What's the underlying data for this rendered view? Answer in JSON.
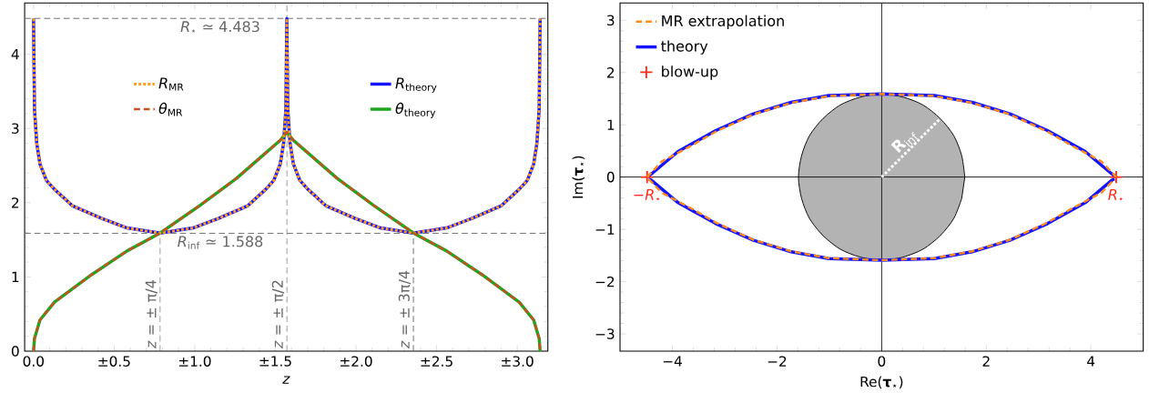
{
  "chart_data": [
    {
      "type": "line",
      "xlabel": "*z*",
      "legend": "top",
      "xlim": [
        -0.055,
        3.19
      ],
      "ylim": [
        0,
        4.69
      ],
      "xticks": [
        {
          "value": 0,
          "label": "0.0"
        },
        {
          "value": 0.5,
          "label": "±0.5"
        },
        {
          "value": 1,
          "label": "±1.0"
        },
        {
          "value": 1.5,
          "label": "±1.5"
        },
        {
          "value": 2,
          "label": "±2.0"
        },
        {
          "value": 2.5,
          "label": "±2.5"
        },
        {
          "value": 3,
          "label": "±3.0"
        }
      ],
      "yticks": [
        0,
        1,
        2,
        3,
        4
      ],
      "series": [
        {
          "name": "*R*$_{MR}$",
          "color": "#ff9c1e",
          "line_style": "dotted",
          "x": [
            0,
            0.006,
            0.02,
            0.04,
            0.08,
            0.13,
            0.24,
            0.42,
            0.58,
            0.785,
            0.99,
            1.15,
            1.33,
            1.44,
            1.49,
            1.53,
            1.551,
            1.565,
            1.571,
            1.577,
            1.591,
            1.612,
            1.652,
            1.702,
            1.812,
            1.992,
            2.152,
            2.356,
            2.562,
            2.722,
            2.902,
            3.012,
            3.062,
            3.102,
            3.122,
            3.136,
            3.142
          ],
          "values": [
            4.48,
            3.26,
            2.8,
            2.52,
            2.3,
            2.18,
            1.96,
            1.79,
            1.66,
            1.59,
            1.66,
            1.79,
            1.96,
            2.18,
            2.3,
            2.52,
            2.8,
            3.26,
            4.48,
            3.26,
            2.8,
            2.52,
            2.3,
            2.18,
            1.96,
            1.79,
            1.66,
            1.59,
            1.66,
            1.79,
            1.96,
            2.18,
            2.3,
            2.52,
            2.8,
            3.26,
            4.48
          ]
        },
        {
          "name": "*R*$_{theory}$",
          "color": "#1414ff",
          "line_style": "solid",
          "x": [
            0,
            0.006,
            0.02,
            0.04,
            0.08,
            0.13,
            0.24,
            0.42,
            0.58,
            0.785,
            0.99,
            1.15,
            1.33,
            1.44,
            1.49,
            1.53,
            1.551,
            1.565,
            1.571,
            1.577,
            1.591,
            1.612,
            1.652,
            1.702,
            1.812,
            1.992,
            2.152,
            2.356,
            2.562,
            2.722,
            2.902,
            3.012,
            3.062,
            3.102,
            3.122,
            3.136,
            3.142
          ],
          "values": [
            4.48,
            3.26,
            2.8,
            2.52,
            2.3,
            2.18,
            1.96,
            1.79,
            1.66,
            1.59,
            1.66,
            1.79,
            1.96,
            2.18,
            2.3,
            2.52,
            2.8,
            3.26,
            4.48,
            3.26,
            2.8,
            2.52,
            2.3,
            2.18,
            1.96,
            1.79,
            1.66,
            1.59,
            1.66,
            1.79,
            1.96,
            2.18,
            2.3,
            2.52,
            2.8,
            3.26,
            4.48
          ]
        },
        {
          "name": "*θ*$_{MR}$",
          "color": "#c8501e",
          "line_style": "dashed",
          "x": [
            0,
            0.006,
            0.04,
            0.13,
            0.36,
            0.58,
            0.785,
            1.03,
            1.26,
            1.44,
            1.53,
            1.571,
            1.612,
            1.702,
            1.882,
            2.112,
            2.357,
            2.562,
            2.782,
            3.012,
            3.102,
            3.136,
            3.142
          ],
          "values": [
            0,
            0.17,
            0.42,
            0.66,
            1.03,
            1.35,
            1.59,
            1.96,
            2.33,
            2.67,
            2.84,
            2.95,
            2.84,
            2.67,
            2.33,
            1.96,
            1.59,
            1.35,
            1.03,
            0.66,
            0.42,
            0.17,
            0
          ]
        },
        {
          "name": "*θ*$_{theory}$",
          "color": "#1fa51f",
          "line_style": "solid",
          "x": [
            0,
            0.006,
            0.04,
            0.13,
            0.36,
            0.58,
            0.785,
            1.03,
            1.26,
            1.44,
            1.53,
            1.571,
            1.612,
            1.702,
            1.882,
            2.112,
            2.357,
            2.562,
            2.782,
            3.012,
            3.102,
            3.136,
            3.142
          ],
          "values": [
            0,
            0.17,
            0.42,
            0.66,
            1.03,
            1.35,
            1.59,
            1.96,
            2.33,
            2.67,
            2.84,
            2.95,
            2.84,
            2.67,
            2.33,
            1.96,
            1.59,
            1.35,
            1.03,
            0.66,
            0.42,
            0.17,
            0
          ]
        }
      ],
      "ref_lines": [
        {
          "axis": "y",
          "value": 4.483,
          "label": "*R*$_{⋆}$ ≃ 4.483",
          "color": "#666666",
          "line_style": "dashed"
        },
        {
          "axis": "y",
          "value": 1.588,
          "label": "*R*$_{inf}$ ≃ 1.588",
          "color": "#666666",
          "line_style": "dashed"
        },
        {
          "axis": "x",
          "value": 1.571,
          "label": "*z* = ± π/2",
          "color": "#666666",
          "line_style": "dashed"
        }
      ],
      "annotations": [
        {
          "text": "*z* = ± π/4",
          "x": 0.785,
          "y": 1.588
        },
        {
          "text": "*z* = ± 3π/4",
          "x": 2.356,
          "y": 1.588
        }
      ]
    },
    {
      "type": "line",
      "xlabel": "Re(**τ**$_{⋆}$)",
      "ylabel": "Im(**τ**$_{⋆}$)",
      "legend": "top left",
      "xlim": [
        -5,
        5
      ],
      "ylim": [
        -3.33,
        3.33
      ],
      "xticks": [
        {
          "value": -4,
          "label": "−4"
        },
        {
          "value": -2,
          "label": "−2"
        },
        0,
        2,
        4
      ],
      "yticks": [
        {
          "value": -3,
          "label": "−3"
        },
        {
          "value": -2,
          "label": "−2"
        },
        {
          "value": -1,
          "label": "−1"
        },
        0,
        1,
        2,
        3
      ],
      "series": [
        {
          "name": "MR extrapolation",
          "color": "#ff8c1a",
          "line_style": "dashed",
          "x": [
            -4.483,
            -4.2,
            -3.6,
            -3.17,
            -2.45,
            -1.73,
            -1.01,
            0,
            1.01,
            1.73,
            2.45,
            3.17,
            3.6,
            4.2,
            4.483
          ],
          "values": [
            0,
            0.3,
            0.62,
            0.87,
            1.2,
            1.42,
            1.55,
            1.59,
            1.55,
            1.42,
            1.2,
            0.87,
            0.62,
            0.3,
            0
          ]
        },
        {
          "color": "#ff8c1a",
          "line_style": "dashed",
          "x": [
            -4.45,
            -4.2,
            -3.6,
            -3.17,
            -2.45,
            -1.73,
            -1.01,
            0,
            1.01,
            1.73,
            2.45,
            3.17,
            3.6,
            4.2,
            4.45
          ],
          "values": [
            -0.04,
            -0.3,
            -0.62,
            -0.87,
            -1.2,
            -1.42,
            -1.55,
            -1.59,
            -1.55,
            -1.42,
            -1.2,
            -0.87,
            -0.62,
            -0.3,
            -0.04
          ]
        },
        {
          "name": "theory",
          "color": "#1414ff",
          "line_style": "solid",
          "x": [
            -4.483,
            -4.4,
            -3.89,
            -3.17,
            -2.45,
            -1.73,
            -1.01,
            0,
            1.01,
            1.73,
            2.45,
            3.17,
            3.89,
            4.4,
            4.483
          ],
          "values": [
            0,
            0.06,
            0.49,
            0.89,
            1.21,
            1.43,
            1.56,
            1.59,
            1.56,
            1.43,
            1.21,
            0.89,
            0.49,
            0.06,
            0
          ]
        },
        {
          "color": "#1414ff",
          "line_style": "solid",
          "x": [
            -4.45,
            -4.4,
            -3.89,
            -3.17,
            -2.45,
            -1.73,
            -1.01,
            0,
            1.01,
            1.73,
            2.45,
            3.17,
            3.89,
            4.4,
            4.45
          ],
          "values": [
            -0.03,
            -0.06,
            -0.49,
            -0.89,
            -1.21,
            -1.43,
            -1.56,
            -1.59,
            -1.56,
            -1.43,
            -1.21,
            -0.89,
            -0.49,
            -0.06,
            -0.03
          ]
        },
        {
          "type": "scatter",
          "name": "blow-up",
          "color": "#ff2a1a",
          "marker": "cross",
          "x": [
            -4.483,
            4.483
          ],
          "values": [
            0,
            0
          ],
          "value_labels": [
            "−*R*$_{⋆}$",
            "*R*$_{⋆}$"
          ]
        },
        {
          "type": "area",
          "color": "#b3b3b3",
          "x": [
            1.59,
            1.53,
            1.38,
            1.12,
            0.79,
            0.41,
            0,
            -0.41,
            -0.79,
            -1.12,
            -1.38,
            -1.53,
            -1.59,
            -1.53,
            -1.38,
            -1.12,
            -0.79,
            -0.41,
            0,
            0.41,
            0.79,
            1.12,
            1.38,
            1.53
          ],
          "values": [
            0,
            0.41,
            0.79,
            1.12,
            1.38,
            1.53,
            1.59,
            1.53,
            1.38,
            1.12,
            0.79,
            0.41,
            0,
            -0.41,
            -0.79,
            -1.12,
            -1.38,
            -1.53,
            -1.59,
            -1.53,
            -1.38,
            -1.12,
            -0.79,
            -0.41
          ]
        },
        {
          "color": "#ffffff",
          "line_style": "dotted",
          "x": [
            0,
            1.12
          ],
          "values": [
            0,
            1.12
          ]
        }
      ],
      "ref_lines": [
        {
          "axis": "x",
          "value": 0,
          "color": "#000000",
          "line_style": "solid"
        },
        {
          "axis": "y",
          "value": 0,
          "color": "#000000",
          "line_style": "solid"
        }
      ],
      "annotations": [
        {
          "text": "**R**$_{inf}$",
          "x": 0.56,
          "y": 0.56
        }
      ]
    }
  ]
}
